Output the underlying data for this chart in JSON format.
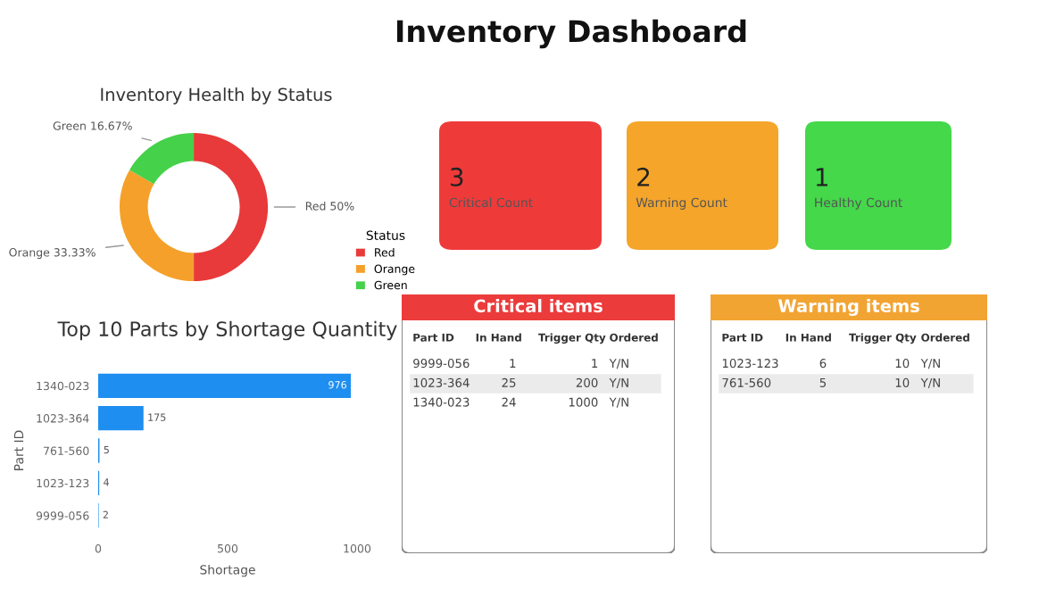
{
  "chart_data": [
    {
      "type": "other",
      "title": "Inventory Dashboard"
    },
    {
      "type": "donut",
      "title": "Inventory Health by Status",
      "legend_title": "Status",
      "legend": "right",
      "categories": [
        "Red",
        "Orange",
        "Green"
      ],
      "values": [
        50,
        33.33,
        16.67
      ],
      "value_labels": [
        "50%",
        "33.33%",
        "16.67%"
      ],
      "colors": [
        "#e83a3a",
        "#f5a02a",
        "#45d14a"
      ]
    },
    {
      "type": "other",
      "values": [
        3
      ],
      "data_labels": true,
      "annotations": [
        "Critical Count"
      ],
      "color": "#ef3a3a"
    },
    {
      "type": "other",
      "values": [
        2
      ],
      "data_labels": true,
      "annotations": [
        "Warning Count"
      ],
      "color": "#f5a52a"
    },
    {
      "type": "other",
      "values": [
        1
      ],
      "data_labels": true,
      "annotations": [
        "Healthy Count"
      ],
      "color": "#44d84a"
    },
    {
      "type": "bar",
      "orientation": "horizontal",
      "title": "Top 10 Parts by Shortage Quantity",
      "xlabel": "Shortage",
      "ylabel": "Part ID",
      "categories": [
        "1340-023",
        "1023-364",
        "761-560",
        "1023-123",
        "9999-056"
      ],
      "values": [
        976,
        175,
        5,
        4,
        2
      ],
      "color": "#1e8ef0",
      "xlim": [
        0,
        1000
      ],
      "xticks": [
        0,
        500,
        1000
      ],
      "data_labels": true
    },
    {
      "type": "other",
      "title": "Critical items",
      "color": "#ec3b3b",
      "categories": [
        "Part ID",
        "In Hand",
        "Trigger Qty",
        "Ordered"
      ],
      "cell_labels": [
        [
          "9999-056",
          "1",
          "1",
          "Y/N"
        ],
        [
          "1023-364",
          "25",
          "200",
          "Y/N"
        ],
        [
          "1340-023",
          "24",
          "1000",
          "Y/N"
        ]
      ]
    },
    {
      "type": "other",
      "title": "Warning items",
      "color": "#f2a433",
      "categories": [
        "Part ID",
        "In Hand",
        "Trigger Qty",
        "Ordered"
      ],
      "cell_labels": [
        [
          "1023-123",
          "6",
          "10",
          "Y/N"
        ],
        [
          "761-560",
          "5",
          "10",
          "Y/N"
        ]
      ]
    }
  ]
}
